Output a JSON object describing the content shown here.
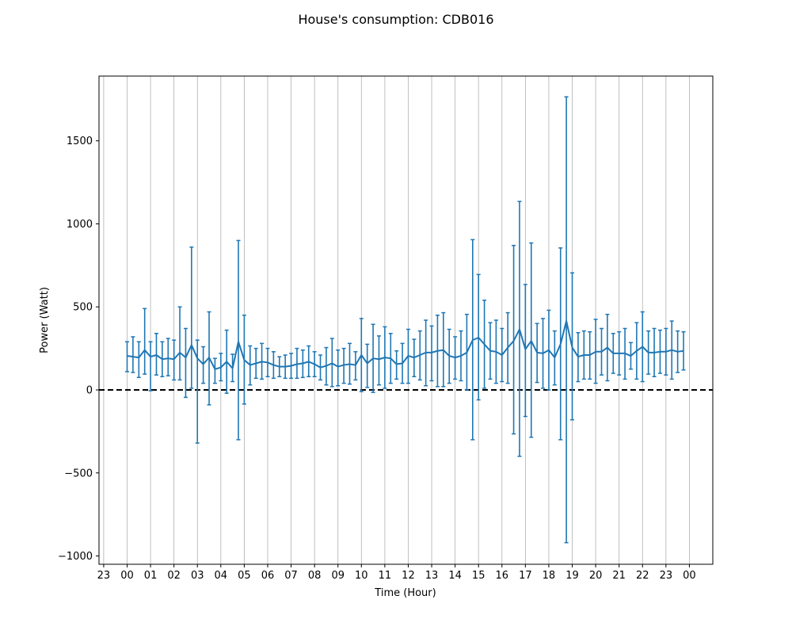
{
  "chart_data": {
    "type": "line",
    "title": "House's consumption: CDB016",
    "xlabel": "Time (Hour)",
    "ylabel": "Power (Watt)",
    "x_tick_labels": [
      "23",
      "00",
      "01",
      "02",
      "03",
      "04",
      "05",
      "06",
      "07",
      "08",
      "09",
      "10",
      "11",
      "12",
      "13",
      "14",
      "15",
      "16",
      "17",
      "18",
      "19",
      "20",
      "21",
      "22",
      "23",
      "00"
    ],
    "x_tick_hours": [
      -1,
      0,
      1,
      2,
      3,
      4,
      5,
      6,
      7,
      8,
      9,
      10,
      11,
      12,
      13,
      14,
      15,
      16,
      17,
      18,
      19,
      20,
      21,
      22,
      23,
      24
    ],
    "xlim_hours": [
      -1.2,
      25.0
    ],
    "ylim": [
      -1050,
      1890
    ],
    "y_ticks": [
      -1000,
      -500,
      0,
      500,
      1000,
      1500
    ],
    "grid": "vertical",
    "reference_line": {
      "y": 0,
      "style": "dashed",
      "color": "#000000"
    },
    "series": [
      {
        "color": "#1f77b4",
        "interval_minutes": 15,
        "mean": [
          205,
          200,
          195,
          240,
          200,
          210,
          185,
          190,
          185,
          225,
          195,
          270,
          190,
          155,
          195,
          125,
          135,
          170,
          130,
          290,
          180,
          150,
          160,
          170,
          165,
          150,
          140,
          140,
          145,
          155,
          160,
          170,
          155,
          135,
          145,
          160,
          140,
          150,
          155,
          150,
          210,
          160,
          190,
          185,
          195,
          190,
          155,
          160,
          205,
          195,
          210,
          225,
          225,
          235,
          240,
          205,
          195,
          205,
          225,
          300,
          315,
          275,
          235,
          230,
          210,
          255,
          295,
          365,
          245,
          295,
          225,
          220,
          240,
          195,
          275,
          415,
          255,
          200,
          210,
          210,
          230,
          230,
          255,
          220,
          220,
          220,
          205,
          235,
          260,
          225,
          225,
          230,
          230,
          240,
          230,
          235
        ],
        "upper": [
          290,
          320,
          290,
          490,
          290,
          340,
          290,
          310,
          300,
          500,
          370,
          860,
          300,
          260,
          470,
          190,
          220,
          360,
          215,
          900,
          450,
          265,
          250,
          280,
          250,
          230,
          200,
          210,
          220,
          250,
          240,
          265,
          230,
          210,
          255,
          310,
          240,
          250,
          280,
          230,
          430,
          275,
          395,
          325,
          380,
          340,
          235,
          280,
          365,
          305,
          355,
          420,
          385,
          450,
          465,
          365,
          320,
          355,
          455,
          905,
          695,
          540,
          405,
          420,
          370,
          465,
          870,
          1135,
          635,
          885,
          400,
          430,
          480,
          355,
          855,
          1765,
          705,
          345,
          355,
          350,
          425,
          370,
          455,
          340,
          350,
          370,
          285,
          405,
          470,
          355,
          370,
          360,
          370,
          415,
          355,
          350
        ],
        "lower": [
          110,
          105,
          75,
          95,
          -5,
          90,
          80,
          85,
          60,
          60,
          -45,
          10,
          -320,
          40,
          -90,
          40,
          55,
          -20,
          50,
          -300,
          -85,
          30,
          70,
          65,
          80,
          70,
          80,
          70,
          70,
          70,
          75,
          80,
          80,
          60,
          30,
          20,
          25,
          40,
          35,
          60,
          -10,
          15,
          -15,
          30,
          10,
          40,
          65,
          40,
          40,
          80,
          60,
          25,
          55,
          20,
          20,
          40,
          65,
          55,
          0,
          -300,
          -60,
          10,
          65,
          40,
          50,
          40,
          -265,
          -400,
          -160,
          -285,
          45,
          10,
          0,
          30,
          -300,
          -920,
          -180,
          50,
          65,
          65,
          40,
          90,
          55,
          100,
          90,
          65,
          125,
          65,
          50,
          95,
          80,
          100,
          90,
          65,
          105,
          120
        ]
      }
    ]
  }
}
